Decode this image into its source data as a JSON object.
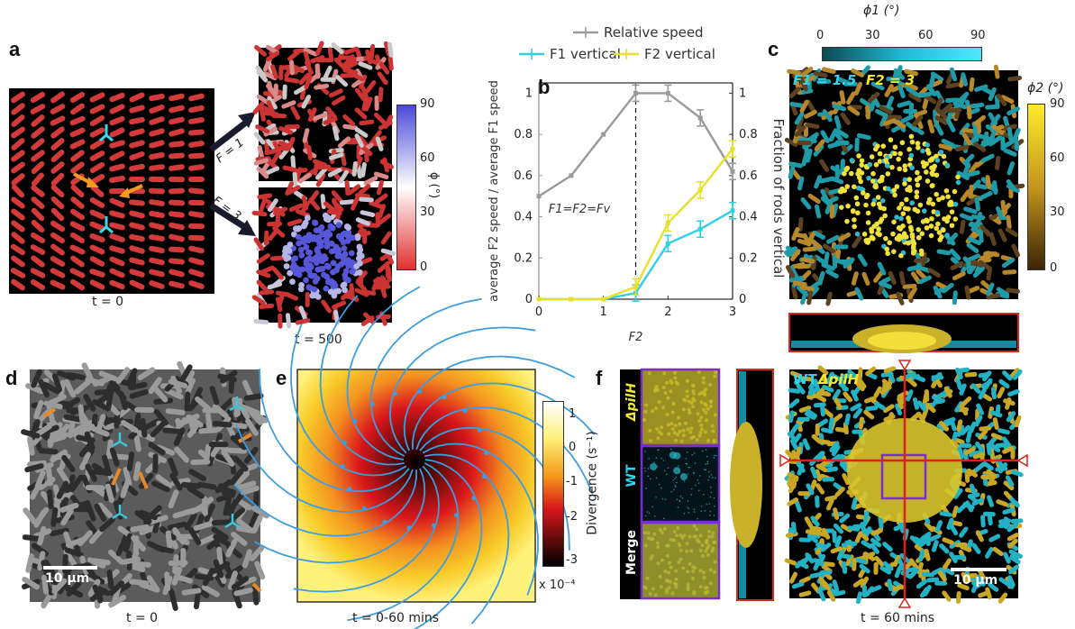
{
  "panels": {
    "a": {
      "label": "a",
      "caption_left": "t = 0",
      "caption_right": "t = 500",
      "arrow1": "F = 1",
      "arrow2": "F = 3",
      "colorbar": {
        "label": "ϕ (°)",
        "ticks": [
          "90",
          "60",
          "30",
          "0"
        ],
        "colors": [
          "#4a4ad8",
          "#ffffff",
          "#e03030"
        ]
      },
      "rod_color": "#d43a3a"
    },
    "b": {
      "label": "b",
      "legend": [
        "Relative speed",
        "F1 vertical",
        "F2 vertical"
      ],
      "annotation": "F1=F2=Fv"
    },
    "c": {
      "label": "c",
      "top_colorbar": {
        "label": "ϕ1 (°)",
        "ticks": [
          "0",
          "30",
          "60",
          "90"
        ]
      },
      "right_colorbar": {
        "label": "ϕ2 (°)",
        "ticks": [
          "90",
          "60",
          "30",
          "0"
        ]
      },
      "f1_text": "F1 = 1.5",
      "f2_text": "F2 = 3"
    },
    "d": {
      "label": "d",
      "scalebar": "10 µm",
      "caption": "t = 0"
    },
    "e": {
      "label": "e",
      "caption": "t = 0-60 mins",
      "colorbar": {
        "label": "Divergence (s⁻¹)",
        "ticks": [
          "1",
          "0",
          "-1",
          "-2",
          "-3"
        ],
        "exponent": "x 10⁻⁴"
      }
    },
    "f": {
      "label": "f",
      "side_labels": [
        "ΔpilH",
        "WT",
        "Merge"
      ],
      "legend_wt": "WT",
      "legend_mut": "ΔpilH",
      "scalebar": "10 µm",
      "caption": "t = 60 mins"
    }
  },
  "chart_data": {
    "type": "line",
    "x": [
      0,
      0.5,
      1,
      1.5,
      2,
      2.5,
      3
    ],
    "xlabel": "F2",
    "ylabel_left": "average F2 speed / average F1 speed",
    "ylabel_right": "Fraction of rods vertical",
    "xlim": [
      0,
      3
    ],
    "ylim": [
      0,
      1.05
    ],
    "xticks": [
      "0",
      "1",
      "2",
      "3"
    ],
    "yticks": [
      "0",
      "0.2",
      "0.4",
      "0.6",
      "0.8",
      "1"
    ],
    "series": [
      {
        "name": "Relative speed",
        "color": "#9a9a9a",
        "values": [
          0.5,
          0.6,
          0.8,
          1.0,
          1.0,
          0.88,
          0.62
        ],
        "axis": "left"
      },
      {
        "name": "F1 vertical",
        "color": "#31d0e6",
        "values": [
          0,
          0,
          0,
          0.03,
          0.27,
          0.34,
          0.43
        ],
        "axis": "right"
      },
      {
        "name": "F2 vertical",
        "color": "#e8e02a",
        "values": [
          0,
          0,
          0,
          0.06,
          0.37,
          0.53,
          0.73
        ],
        "axis": "right"
      }
    ],
    "vline": 1.5
  }
}
